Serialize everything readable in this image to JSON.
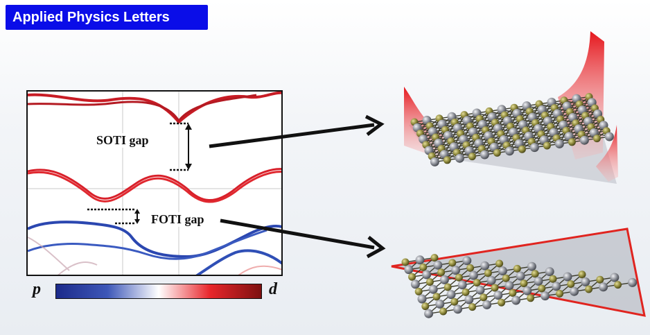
{
  "header": {
    "journal": "Applied Physics Letters"
  },
  "band_plot": {
    "soti_label": "SOTI gap",
    "foti_label": "FOTI gap"
  },
  "colorbar": {
    "left_label": "p",
    "right_label": "d",
    "colors": [
      "#1c2a8a",
      "#3d57b8",
      "#ffffff",
      "#e8262b",
      "#7d1010"
    ]
  },
  "colors": {
    "journal_badge": "#0a0de8",
    "d_band": "#d8202a",
    "p_band": "#2b47b0",
    "corner_state": "#e5161c",
    "edge_state": "#e0241f",
    "atom_gold": "#8f8a3c",
    "atom_grey": "#8c8f97"
  }
}
